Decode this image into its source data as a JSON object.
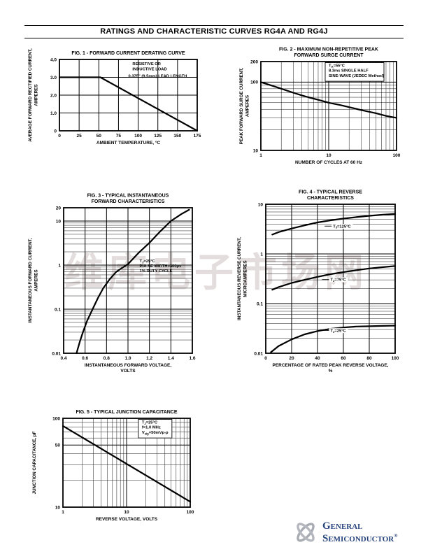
{
  "page": {
    "title": "RATINGS AND CHARACTERISTIC CURVES RG4A AND RG4J"
  },
  "watermark": {
    "text": "维库电子市场网"
  },
  "logo": {
    "line1": "General",
    "line2": "Semiconductor",
    "reg": "®"
  },
  "chart_data": [
    {
      "id": "fig1",
      "type": "line",
      "title_lines": [
        "FIG. 1 - FORWARD CURRENT DERATING CURVE"
      ],
      "xlabel_lines": [
        "AMBIENT TEMPERATURE, °C"
      ],
      "ylabel_lines": [
        "AVERAGE FORWARD RECTIFIED CURRENT,",
        "AMPERES"
      ],
      "x": {
        "scale": "linear",
        "min": 0,
        "max": 175,
        "ticks": [
          0,
          25,
          50,
          75,
          100,
          125,
          150,
          175
        ],
        "tick_labels": [
          "0",
          "25",
          "50",
          "75",
          "100",
          "125",
          "150",
          "175"
        ]
      },
      "y": {
        "scale": "linear",
        "min": 0,
        "max": 4,
        "ticks": [
          0,
          1,
          2,
          3,
          4
        ],
        "tick_labels": [
          "0",
          "1.0",
          "2.0",
          "3.0",
          "4.0"
        ]
      },
      "series": [
        {
          "name": "derating-curve",
          "points": [
            [
              0,
              3
            ],
            [
              52,
              3
            ],
            [
              175,
              0
            ]
          ]
        }
      ],
      "annotations": [
        {
          "lines": [
            "RESISTIVE OR",
            "INDUCTIVE LOAD"
          ],
          "fx": 0.53,
          "fy": 0.03,
          "boxed": false
        },
        {
          "lines": [
            "0.375\" (9.5mm) LEAD LENGTH"
          ],
          "fx": 0.5,
          "fy": 0.2,
          "boxed": false
        }
      ]
    },
    {
      "id": "fig2",
      "type": "line",
      "title_lines": [
        "FIG. 2 - MAXIMUM NON-REPETITIVE PEAK",
        "FORWARD SURGE CURRENT"
      ],
      "xlabel_lines": [
        "NUMBER OF CYCLES AT 60 Hz"
      ],
      "ylabel_lines": [
        "PEAK FORWARD SURGE CURRENT,",
        "AMPERES"
      ],
      "x": {
        "scale": "log",
        "min": 1,
        "max": 100,
        "ticks": [
          1,
          10,
          100
        ],
        "tick_labels": [
          "1",
          "10",
          "100"
        ]
      },
      "y": {
        "scale": "log",
        "min": 10,
        "max": 200,
        "ticks": [
          10,
          100,
          200
        ],
        "tick_labels": [
          "10",
          "100",
          "200"
        ]
      },
      "series": [
        {
          "name": "surge-current",
          "points": [
            [
              1,
              100
            ],
            [
              1.5,
              88
            ],
            [
              2,
              80
            ],
            [
              3,
              70
            ],
            [
              4,
              64
            ],
            [
              5,
              60
            ],
            [
              7,
              55
            ],
            [
              10,
              50
            ],
            [
              15,
              46
            ],
            [
              20,
              43
            ],
            [
              30,
              39
            ],
            [
              50,
              35
            ],
            [
              70,
              32
            ],
            [
              100,
              30
            ]
          ]
        }
      ],
      "annotations": [
        {
          "lines": [
            "TA=55°C",
            "8.3ms SINGLE HALF",
            "SINE-WAVE (JEDEC Method)"
          ],
          "fx": 0.5,
          "fy": 0.02,
          "boxed": true
        }
      ]
    },
    {
      "id": "fig3",
      "type": "line",
      "title_lines": [
        "FIG. 3 - TYPICAL INSTANTANEOUS",
        "FORWARD CHARACTERISTICS"
      ],
      "xlabel_lines": [
        "INSTANTANEOUS FORWARD VOLTAGE,",
        "VOLTS"
      ],
      "ylabel_lines": [
        "INSTANTANEOUS FORWARD CURRENT,",
        "AMPERES"
      ],
      "x": {
        "scale": "linear",
        "min": 0.4,
        "max": 1.6,
        "ticks": [
          0.4,
          0.6,
          0.8,
          1.0,
          1.2,
          1.4,
          1.6
        ],
        "tick_labels": [
          "0.4",
          "0.6",
          "0.8",
          "1.0",
          "1.2",
          "1.4",
          "1.6"
        ]
      },
      "y": {
        "scale": "log",
        "min": 0.01,
        "max": 20,
        "ticks": [
          0.01,
          0.1,
          1,
          10,
          20
        ],
        "tick_labels": [
          "0.01",
          "0.1",
          "1",
          "10",
          "20"
        ]
      },
      "series": [
        {
          "name": "forward-characteristic",
          "points": [
            [
              0.52,
              0.01
            ],
            [
              0.55,
              0.018
            ],
            [
              0.58,
              0.03
            ],
            [
              0.62,
              0.055
            ],
            [
              0.67,
              0.1
            ],
            [
              0.72,
              0.18
            ],
            [
              0.77,
              0.3
            ],
            [
              0.83,
              0.48
            ],
            [
              0.89,
              0.7
            ],
            [
              0.95,
              0.88
            ],
            [
              1.0,
              1.05
            ],
            [
              1.1,
              1.9
            ],
            [
              1.2,
              3.2
            ],
            [
              1.3,
              5.8
            ],
            [
              1.4,
              10
            ],
            [
              1.5,
              14.5
            ],
            [
              1.57,
              18
            ]
          ]
        }
      ],
      "annotations": [
        {
          "lines": [
            "TJ=25°C",
            "PULSE WIDTH=300μs",
            "1% DUTY CYCLE"
          ],
          "fx": 0.59,
          "fy": 0.35,
          "boxed": false
        }
      ]
    },
    {
      "id": "fig4",
      "type": "line",
      "title_lines": [
        "FIG. 4 - TYPICAL REVERSE",
        "CHARACTERISTICS"
      ],
      "xlabel_lines": [
        "PERCENTAGE OF RATED PEAK REVERSE VOLTAGE,",
        "%"
      ],
      "ylabel_lines": [
        "INSTANTANEOUS REVERSE CURRENT,",
        "MICROAMPERES"
      ],
      "x": {
        "scale": "linear",
        "min": 0,
        "max": 100,
        "ticks": [
          0,
          20,
          40,
          60,
          80,
          100
        ],
        "tick_labels": [
          "0",
          "20",
          "40",
          "60",
          "80",
          "100"
        ]
      },
      "y": {
        "scale": "log",
        "min": 0.01,
        "max": 10,
        "ticks": [
          0.01,
          0.1,
          1,
          10
        ],
        "tick_labels": [
          "0.01",
          "0.1",
          "1",
          "10"
        ]
      },
      "series": [
        {
          "name": "reverse-125C",
          "label": "TJ=125°C",
          "label_at": [
            52,
            3.4
          ],
          "points": [
            [
              5,
              2.45
            ],
            [
              10,
              2.75
            ],
            [
              20,
              3.25
            ],
            [
              30,
              3.75
            ],
            [
              40,
              4.3
            ],
            [
              50,
              4.75
            ],
            [
              60,
              5.15
            ],
            [
              70,
              5.5
            ],
            [
              80,
              5.85
            ],
            [
              90,
              6.15
            ],
            [
              100,
              6.4
            ]
          ]
        },
        {
          "name": "reverse-75C",
          "label": "TJ=75°C",
          "label_at": [
            50,
            0.285
          ],
          "points": [
            [
              5,
              0.19
            ],
            [
              10,
              0.215
            ],
            [
              20,
              0.26
            ],
            [
              30,
              0.3
            ],
            [
              40,
              0.345
            ],
            [
              50,
              0.39
            ],
            [
              60,
              0.43
            ],
            [
              70,
              0.47
            ],
            [
              80,
              0.51
            ],
            [
              90,
              0.54
            ],
            [
              100,
              0.57
            ]
          ]
        },
        {
          "name": "reverse-25C",
          "label": "TJ=25°C",
          "label_at": [
            50,
            0.027
          ],
          "points": [
            [
              4,
              0.0105
            ],
            [
              10,
              0.014
            ],
            [
              20,
              0.019
            ],
            [
              30,
              0.024
            ],
            [
              40,
              0.028
            ],
            [
              50,
              0.031
            ],
            [
              60,
              0.033
            ],
            [
              70,
              0.0345
            ],
            [
              80,
              0.035
            ],
            [
              90,
              0.0355
            ],
            [
              100,
              0.036
            ]
          ]
        }
      ],
      "annotations": []
    },
    {
      "id": "fig5",
      "type": "line",
      "title_lines": [
        "FIG. 5 - TYPICAL JUNCTION CAPACITANCE"
      ],
      "xlabel_lines": [
        "REVERSE VOLTAGE, VOLTS"
      ],
      "ylabel_lines": [
        "JUNCTION CAPACITANCE, pF"
      ],
      "x": {
        "scale": "log",
        "min": 1,
        "max": 100,
        "ticks": [
          1,
          10,
          100
        ],
        "tick_labels": [
          "1",
          "10",
          "100"
        ]
      },
      "y": {
        "scale": "log",
        "min": 10,
        "max": 100,
        "ticks": [
          10,
          50,
          100
        ],
        "tick_labels": [
          "10",
          "50",
          "100"
        ]
      },
      "series": [
        {
          "name": "junction-capacitance",
          "points": [
            [
              1,
              82
            ],
            [
              100,
              11.5
            ]
          ]
        }
      ],
      "annotations": [
        {
          "lines": [
            "TJ=25°C",
            "f=1.0 MHz",
            "Vsig=50mVp-p"
          ],
          "fx": 0.62,
          "fy": 0.02,
          "boxed": true
        }
      ]
    }
  ]
}
